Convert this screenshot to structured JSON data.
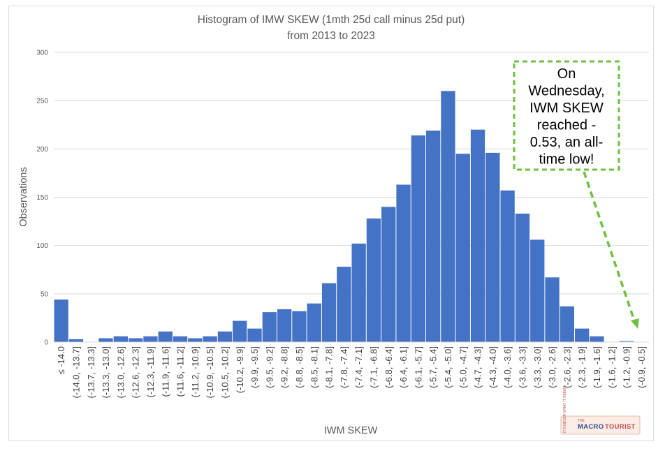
{
  "chart_data": {
    "type": "bar",
    "title": "Histogram of IMW SKEW (1mth 25d call minus 25d put)",
    "subtitle": "from 2013 to 2023",
    "xlabel": "IWM SKEW",
    "ylabel": "Observations",
    "ylim": [
      0,
      300
    ],
    "yticks": [
      "0",
      "50",
      "100",
      "150",
      "200",
      "250",
      "300"
    ],
    "grid": true,
    "bar_color": "#4472c4",
    "categories": [
      "≤ -14.0",
      "(-14.0, -13.7]",
      "(-13.7, -13.3]",
      "(-13.3, -13.0]",
      "(-13.0, -12.6]",
      "(-12.6, -12.3]",
      "(-12.3, -11.9]",
      "(-11.9, -11.6]",
      "(-11.6, -11.2]",
      "(-11.2, -10.9]",
      "(-10.9, -10.5]",
      "(-10.5, -10.2]",
      "(-10.2, -9.9]",
      "(-9.9, -9.5]",
      "(-9.5, -9.2]",
      "(-9.2, -8.8]",
      "(-8.8, -8.5]",
      "(-8.5, -8.1]",
      "(-8.1, -7.8]",
      "(-7.8, -7.4]",
      "(-7.4, -7.1]",
      "(-7.1, -6.8]",
      "(-6.8, -6.4]",
      "(-6.4, -6.1]",
      "(-6.1, -5.7]",
      "(-5.7, -5.4]",
      "(-5.4, -5.0]",
      "(-5.0, -4.7]",
      "(-4.7, -4.3]",
      "(-4.3, -4.0]",
      "(-4.0, -3.6]",
      "(-3.6, -3.3]",
      "(-3.3, -3.0]",
      "(-3.0, -2.6]",
      "(-2.6, -2.3]",
      "(-2.3, -1.9]",
      "(-1.9, -1.6]",
      "(-1.6, -1.2]",
      "(-1.2, -0.9]",
      "(-0.9, -0.5]"
    ],
    "values": [
      44,
      3,
      0,
      4,
      6,
      4,
      6,
      11,
      6,
      4,
      6,
      11,
      22,
      14,
      31,
      34,
      32,
      40,
      61,
      78,
      102,
      128,
      140,
      163,
      214,
      219,
      260,
      195,
      220,
      196,
      157,
      133,
      106,
      67,
      37,
      14,
      6,
      0,
      1,
      0
    ],
    "annotations": [
      {
        "text_lines": [
          "On",
          "Wednesday,",
          "IWM SKEW",
          "reached -",
          "0.53, an all-",
          "time low!"
        ],
        "border_color": "#6dc040",
        "target_category": "(-0.9, -0.5]"
      }
    ]
  },
  "logo": {
    "prefix": "THE",
    "word1": "MACRO",
    "word2": "TOURIST",
    "side_text": "IT'S NEVER WHAT IT SEEMS",
    "color1": "#2f4f8f",
    "color2": "#c0504d"
  }
}
